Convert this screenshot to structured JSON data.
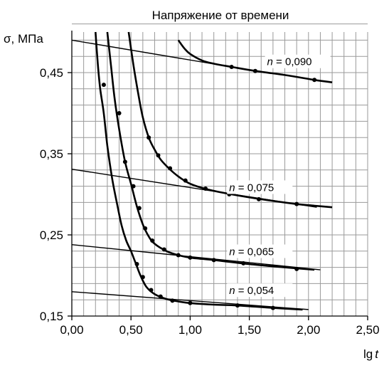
{
  "chart_data": {
    "type": "line",
    "title": "Напряжение от времени",
    "ylabel": "σ, МПа",
    "xlabel_prefix": "lg",
    "xlabel_var": "t",
    "xlim": [
      0.0,
      2.5
    ],
    "ylim": [
      0.15,
      0.5
    ],
    "x_ticks": [
      "0,00",
      "0,50",
      "1,00",
      "1,50",
      "2,00",
      "2,50"
    ],
    "x_tick_values": [
      0.0,
      0.5,
      1.0,
      1.5,
      2.0,
      2.5
    ],
    "y_ticks": [
      "0,45",
      "0,35",
      "0,25",
      "0,15"
    ],
    "y_tick_values": [
      0.45,
      0.35,
      0.25,
      0.15
    ],
    "grid": true,
    "grid_minor_x": 0.1,
    "grid_minor_y": 0.02,
    "curves": [
      {
        "points": [
          [
            0.9,
            0.49
          ],
          [
            0.95,
            0.48
          ],
          [
            1.0,
            0.473
          ],
          [
            1.1,
            0.465
          ],
          [
            1.2,
            0.461
          ],
          [
            1.35,
            0.457
          ],
          [
            1.55,
            0.452
          ],
          [
            1.8,
            0.447
          ],
          [
            2.05,
            0.441
          ],
          [
            2.2,
            0.438
          ]
        ],
        "markers": [
          [
            1.35,
            0.457
          ],
          [
            1.55,
            0.452
          ],
          [
            2.05,
            0.441
          ]
        ],
        "tangent": [
          [
            0.0,
            0.49
          ],
          [
            1.55,
            0.452
          ]
        ],
        "label_n": "n",
        "label_val": " = 0,090",
        "label_at": [
          1.65,
          0.459
        ]
      },
      {
        "points": [
          [
            0.48,
            0.5
          ],
          [
            0.52,
            0.46
          ],
          [
            0.56,
            0.425
          ],
          [
            0.6,
            0.395
          ],
          [
            0.65,
            0.37
          ],
          [
            0.7,
            0.355
          ],
          [
            0.75,
            0.343
          ],
          [
            0.82,
            0.332
          ],
          [
            0.9,
            0.322
          ],
          [
            1.0,
            0.313
          ],
          [
            1.15,
            0.306
          ],
          [
            1.35,
            0.3
          ],
          [
            1.6,
            0.294
          ],
          [
            1.9,
            0.288
          ],
          [
            2.05,
            0.286
          ],
          [
            2.2,
            0.284
          ]
        ],
        "markers": [
          [
            0.65,
            0.37
          ],
          [
            0.73,
            0.348
          ],
          [
            0.83,
            0.332
          ],
          [
            0.96,
            0.317
          ],
          [
            1.13,
            0.307
          ],
          [
            1.33,
            0.3
          ],
          [
            1.58,
            0.294
          ],
          [
            1.9,
            0.288
          ]
        ],
        "tangent": [
          [
            0.0,
            0.331
          ],
          [
            2.07,
            0.284
          ]
        ],
        "label_n": "n",
        "label_val": " = 0,075",
        "label_at": [
          1.33,
          0.304
        ]
      },
      {
        "points": [
          [
            0.3,
            0.5
          ],
          [
            0.33,
            0.46
          ],
          [
            0.36,
            0.42
          ],
          [
            0.4,
            0.38
          ],
          [
            0.45,
            0.34
          ],
          [
            0.5,
            0.313
          ],
          [
            0.55,
            0.285
          ],
          [
            0.6,
            0.263
          ],
          [
            0.65,
            0.248
          ],
          [
            0.7,
            0.239
          ],
          [
            0.8,
            0.23
          ],
          [
            0.9,
            0.225
          ],
          [
            1.0,
            0.222
          ],
          [
            1.2,
            0.219
          ],
          [
            1.5,
            0.214
          ],
          [
            1.8,
            0.21
          ],
          [
            2.05,
            0.207
          ]
        ],
        "markers": [
          [
            0.45,
            0.34
          ],
          [
            0.52,
            0.31
          ],
          [
            0.57,
            0.283
          ],
          [
            0.62,
            0.258
          ],
          [
            0.68,
            0.243
          ],
          [
            0.78,
            0.232
          ],
          [
            0.9,
            0.225
          ],
          [
            1.0,
            0.222
          ],
          [
            1.2,
            0.219
          ],
          [
            1.45,
            0.215
          ],
          [
            1.9,
            0.208
          ]
        ],
        "tangent": [
          [
            0.0,
            0.238
          ],
          [
            2.1,
            0.207
          ]
        ],
        "label_n": "n",
        "label_val": " = 0,065",
        "label_at": [
          1.33,
          0.225
        ]
      },
      {
        "points": [
          [
            0.2,
            0.5
          ],
          [
            0.22,
            0.46
          ],
          [
            0.24,
            0.43
          ],
          [
            0.27,
            0.4
          ],
          [
            0.3,
            0.36
          ],
          [
            0.34,
            0.32
          ],
          [
            0.38,
            0.29
          ],
          [
            0.42,
            0.262
          ],
          [
            0.46,
            0.243
          ],
          [
            0.5,
            0.23
          ],
          [
            0.54,
            0.215
          ],
          [
            0.58,
            0.2
          ],
          [
            0.63,
            0.186
          ],
          [
            0.7,
            0.177
          ],
          [
            0.8,
            0.171
          ],
          [
            0.9,
            0.168
          ],
          [
            1.0,
            0.166
          ],
          [
            1.2,
            0.164
          ],
          [
            1.4,
            0.163
          ],
          [
            1.7,
            0.16
          ],
          [
            1.95,
            0.158
          ]
        ],
        "markers": [
          [
            0.27,
            0.435
          ],
          [
            0.4,
            0.4
          ],
          [
            0.55,
            0.214
          ],
          [
            0.6,
            0.198
          ],
          [
            0.67,
            0.182
          ],
          [
            0.75,
            0.174
          ],
          [
            0.85,
            0.169
          ],
          [
            1.0,
            0.166
          ],
          [
            1.4,
            0.163
          ],
          [
            1.7,
            0.16
          ]
        ],
        "tangent": [
          [
            0.0,
            0.18
          ],
          [
            2.0,
            0.158
          ]
        ],
        "label_n": "n",
        "label_val": " = 0,054",
        "label_at": [
          1.33,
          0.177
        ]
      }
    ]
  }
}
